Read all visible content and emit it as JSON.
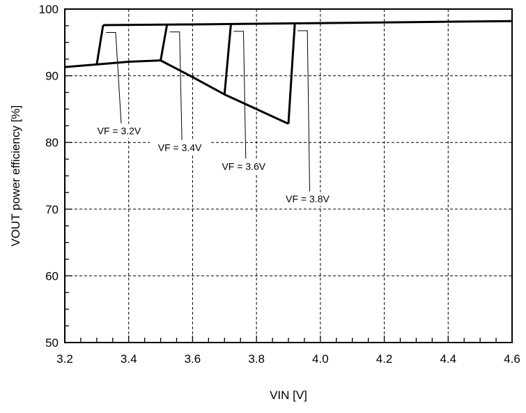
{
  "chart_data": {
    "type": "line",
    "title": "",
    "xlabel": "VIN [V]",
    "ylabel": "VOUT power efficiency [%]",
    "xlim": [
      3.2,
      4.6
    ],
    "ylim": [
      50,
      100
    ],
    "x_ticks": [
      "3.2",
      "3.4",
      "3.6",
      "3.8",
      "4.0",
      "4.2",
      "4.4",
      "4.6"
    ],
    "y_ticks": [
      "50",
      "60",
      "70",
      "80",
      "90",
      "100"
    ],
    "grid": true,
    "lower_curve": {
      "x": [
        3.2,
        3.3,
        3.4,
        3.5,
        3.6,
        3.7,
        3.8,
        3.9
      ],
      "y": [
        91.3,
        91.7,
        92.1,
        92.3,
        89.8,
        87.2,
        85.0,
        82.8
      ]
    },
    "upper_curve": {
      "x": [
        3.32,
        3.6,
        4.0,
        4.4,
        4.6
      ],
      "y": [
        97.6,
        97.7,
        97.9,
        98.1,
        98.2
      ]
    },
    "series": [
      {
        "name": "VF = 3.2V",
        "x": [
          3.2,
          3.3,
          3.32,
          4.6
        ],
        "y": [
          91.3,
          91.7,
          97.6,
          98.2
        ],
        "jump_x": 3.31
      },
      {
        "name": "VF = 3.4V",
        "x": [
          3.2,
          3.5,
          3.52,
          4.6
        ],
        "y": [
          91.3,
          92.3,
          97.7,
          98.2
        ],
        "jump_x": 3.51
      },
      {
        "name": "VF = 3.6V",
        "x": [
          3.2,
          3.5,
          3.7,
          3.72,
          4.6
        ],
        "y": [
          91.3,
          92.3,
          87.2,
          97.8,
          98.2
        ],
        "jump_x": 3.71
      },
      {
        "name": "VF = 3.8V",
        "x": [
          3.2,
          3.5,
          3.9,
          3.92,
          4.6
        ],
        "y": [
          91.3,
          92.3,
          82.8,
          97.9,
          98.2
        ],
        "jump_x": 3.91
      }
    ],
    "annotations": [
      {
        "text": "VF = 3.2V",
        "x": 3.37,
        "y": 81.2
      },
      {
        "text": "VF = 3.4V",
        "x": 3.56,
        "y": 78.7
      },
      {
        "text": "VF = 3.6V",
        "x": 3.76,
        "y": 75.9
      },
      {
        "text": "VF = 3.8V",
        "x": 3.96,
        "y": 71.0
      }
    ]
  }
}
